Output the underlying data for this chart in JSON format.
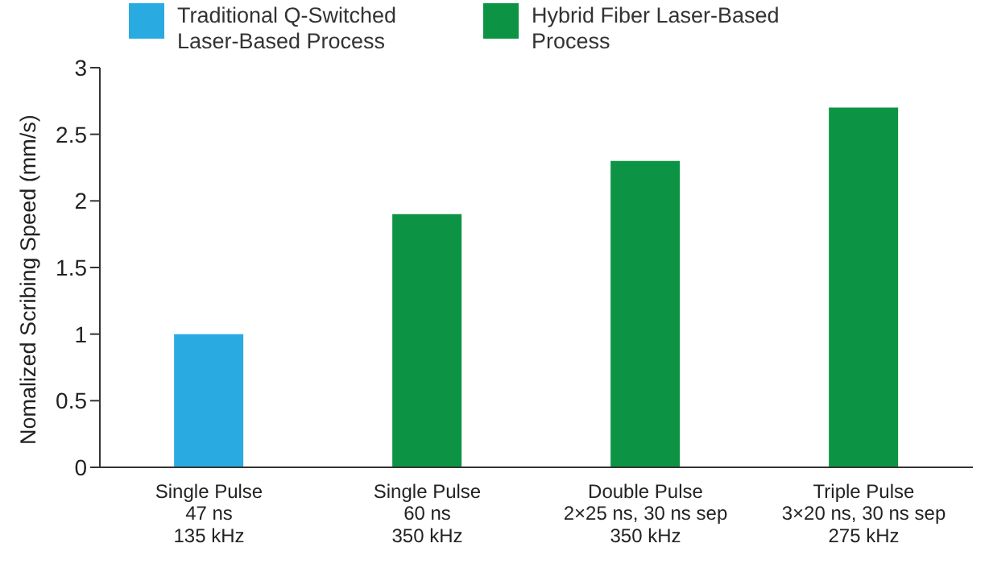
{
  "chart_data": {
    "type": "bar",
    "ylabel": "Nomalized Scribing Speed (mm/s)",
    "categories": [
      "Single Pulse\n47 ns\n135 kHz",
      "Single Pulse\n60 ns\n350 kHz",
      "Double Pulse\n2×25 ns, 30 ns sep\n350 kHz",
      "Triple Pulse\n3×20 ns, 30 ns sep\n275 kHz"
    ],
    "series": [
      {
        "name": "Traditional Q-Switched Laser-Based Process",
        "color": "#29abe2",
        "values": [
          1.0,
          null,
          null,
          null
        ]
      },
      {
        "name": "Hybrid Fiber Laser-Based Process",
        "color": "#0c9444",
        "values": [
          null,
          1.9,
          2.3,
          2.7
        ]
      }
    ],
    "stacked": true,
    "ylim": [
      0,
      3
    ],
    "yticks": [
      0,
      0.5,
      1,
      1.5,
      2,
      2.5,
      3
    ],
    "grid": false,
    "legend": "top left"
  }
}
